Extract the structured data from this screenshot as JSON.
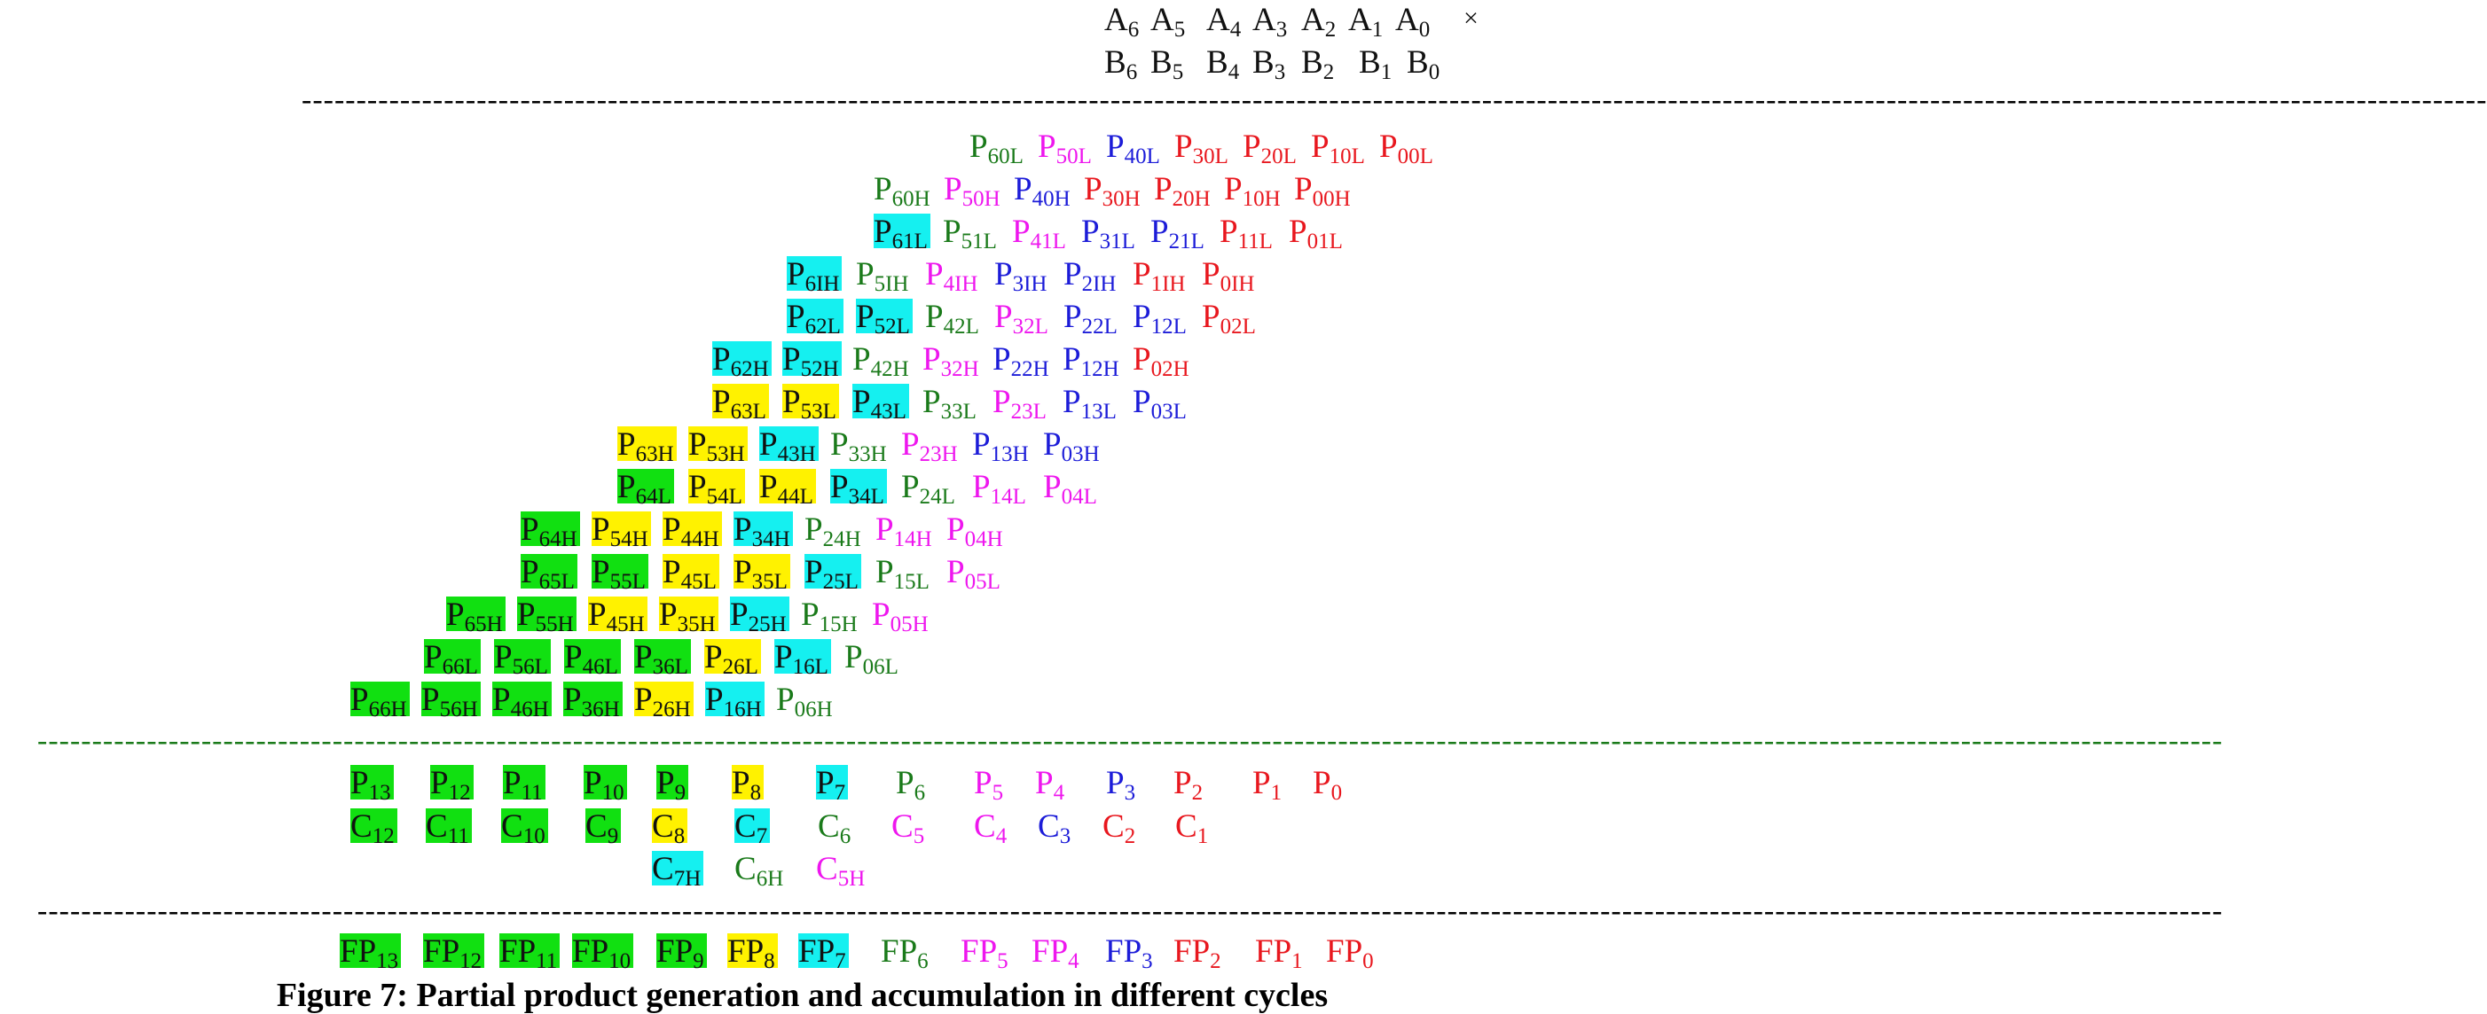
{
  "colors": {
    "red": "#e8171e",
    "magenta": "#ee16ee",
    "blue": "#1c1cd8",
    "green": "#1a7a1a",
    "highlight_green": "#11e011",
    "highlight_yellow": "#fff200",
    "highlight_cyan": "#15f0f0",
    "highlight_text": "#111111"
  },
  "operands": {
    "a_terms": [
      {
        "base": "A",
        "sub": "6"
      },
      {
        "base": "A",
        "sub": "5"
      },
      {
        "base": "A",
        "sub": "4"
      },
      {
        "base": "A",
        "sub": "3"
      },
      {
        "base": "A",
        "sub": "2"
      },
      {
        "base": "A",
        "sub": "1"
      },
      {
        "base": "A",
        "sub": "0"
      }
    ],
    "times_symbol": "×",
    "b_terms": [
      {
        "base": "B",
        "sub": "6"
      },
      {
        "base": "B",
        "sub": "5"
      },
      {
        "base": "B",
        "sub": "4"
      },
      {
        "base": "B",
        "sub": "3"
      },
      {
        "base": "B",
        "sub": "2"
      },
      {
        "base": "B",
        "sub": "1"
      },
      {
        "base": "B",
        "sub": "0"
      }
    ]
  },
  "partial_products": {
    "rows": [
      [
        {
          "base": "P",
          "sub": "60L",
          "color": "green"
        },
        {
          "base": "P",
          "sub": "50L",
          "color": "magenta"
        },
        {
          "base": "P",
          "sub": "40L",
          "color": "blue"
        },
        {
          "base": "P",
          "sub": "30L",
          "color": "red"
        },
        {
          "base": "P",
          "sub": "20L",
          "color": "red"
        },
        {
          "base": "P",
          "sub": "10L",
          "color": "red"
        },
        {
          "base": "P",
          "sub": "00L",
          "color": "red"
        }
      ],
      [
        {
          "base": "P",
          "sub": "60H",
          "color": "green"
        },
        {
          "base": "P",
          "sub": "50H",
          "color": "magenta"
        },
        {
          "base": "P",
          "sub": "40H",
          "color": "blue"
        },
        {
          "base": "P",
          "sub": "30H",
          "color": "red"
        },
        {
          "base": "P",
          "sub": "20H",
          "color": "red"
        },
        {
          "base": "P",
          "sub": "10H",
          "color": "red"
        },
        {
          "base": "P",
          "sub": "00H",
          "color": "red"
        }
      ],
      [
        {
          "base": "P",
          "sub": "61L",
          "color": "cyan-hl"
        },
        {
          "base": "P",
          "sub": "51L",
          "color": "green"
        },
        {
          "base": "P",
          "sub": "41L",
          "color": "magenta"
        },
        {
          "base": "P",
          "sub": "31L",
          "color": "blue"
        },
        {
          "base": "P",
          "sub": "21L",
          "color": "blue"
        },
        {
          "base": "P",
          "sub": "11L",
          "color": "red"
        },
        {
          "base": "P",
          "sub": "01L",
          "color": "red"
        }
      ],
      [
        {
          "base": "P",
          "sub": "6IH",
          "color": "cyan-hl"
        },
        {
          "base": "P",
          "sub": "5IH",
          "color": "green"
        },
        {
          "base": "P",
          "sub": "4IH",
          "color": "magenta"
        },
        {
          "base": "P",
          "sub": "3IH",
          "color": "blue"
        },
        {
          "base": "P",
          "sub": "2IH",
          "color": "blue"
        },
        {
          "base": "P",
          "sub": "1IH",
          "color": "red"
        },
        {
          "base": "P",
          "sub": "0IH",
          "color": "red"
        }
      ],
      [
        {
          "base": "P",
          "sub": "62L",
          "color": "cyan-hl"
        },
        {
          "base": "P",
          "sub": "52L",
          "color": "cyan-hl"
        },
        {
          "base": "P",
          "sub": "42L",
          "color": "green"
        },
        {
          "base": "P",
          "sub": "32L",
          "color": "magenta"
        },
        {
          "base": "P",
          "sub": "22L",
          "color": "blue"
        },
        {
          "base": "P",
          "sub": "12L",
          "color": "blue"
        },
        {
          "base": "P",
          "sub": "02L",
          "color": "red"
        }
      ],
      [
        {
          "base": "P",
          "sub": "62H",
          "color": "cyan-hl"
        },
        {
          "base": "P",
          "sub": "52H",
          "color": "cyan-hl"
        },
        {
          "base": "P",
          "sub": "42H",
          "color": "green"
        },
        {
          "base": "P",
          "sub": "32H",
          "color": "magenta"
        },
        {
          "base": "P",
          "sub": "22H",
          "color": "blue"
        },
        {
          "base": "P",
          "sub": "12H",
          "color": "blue"
        },
        {
          "base": "P",
          "sub": "02H",
          "color": "red"
        }
      ],
      [
        {
          "base": "P",
          "sub": "63L",
          "color": "yellow-hl"
        },
        {
          "base": "P",
          "sub": "53L",
          "color": "yellow-hl"
        },
        {
          "base": "P",
          "sub": "43L",
          "color": "cyan-hl"
        },
        {
          "base": "P",
          "sub": "33L",
          "color": "green"
        },
        {
          "base": "P",
          "sub": "23L",
          "color": "magenta"
        },
        {
          "base": "P",
          "sub": "13L",
          "color": "blue"
        },
        {
          "base": "P",
          "sub": "03L",
          "color": "blue"
        }
      ],
      [
        {
          "base": "P",
          "sub": "63H",
          "color": "yellow-hl"
        },
        {
          "base": "P",
          "sub": "53H",
          "color": "yellow-hl"
        },
        {
          "base": "P",
          "sub": "43H",
          "color": "cyan-hl"
        },
        {
          "base": "P",
          "sub": "33H",
          "color": "green"
        },
        {
          "base": "P",
          "sub": "23H",
          "color": "magenta"
        },
        {
          "base": "P",
          "sub": "13H",
          "color": "blue"
        },
        {
          "base": "P",
          "sub": "03H",
          "color": "blue"
        }
      ],
      [
        {
          "base": "P",
          "sub": "64L",
          "color": "green-hl"
        },
        {
          "base": "P",
          "sub": "54L",
          "color": "yellow-hl"
        },
        {
          "base": "P",
          "sub": "44L",
          "color": "yellow-hl"
        },
        {
          "base": "P",
          "sub": "34L",
          "color": "cyan-hl"
        },
        {
          "base": "P",
          "sub": "24L",
          "color": "green"
        },
        {
          "base": "P",
          "sub": "14L",
          "color": "magenta"
        },
        {
          "base": "P",
          "sub": "04L",
          "color": "magenta"
        }
      ],
      [
        {
          "base": "P",
          "sub": "64H",
          "color": "green-hl"
        },
        {
          "base": "P",
          "sub": "54H",
          "color": "yellow-hl"
        },
        {
          "base": "P",
          "sub": "44H",
          "color": "yellow-hl"
        },
        {
          "base": "P",
          "sub": "34H",
          "color": "cyan-hl"
        },
        {
          "base": "P",
          "sub": "24H",
          "color": "green"
        },
        {
          "base": "P",
          "sub": "14H",
          "color": "magenta"
        },
        {
          "base": "P",
          "sub": "04H",
          "color": "magenta"
        }
      ],
      [
        {
          "base": "P",
          "sub": "65L",
          "color": "green-hl"
        },
        {
          "base": "P",
          "sub": "55L",
          "color": "green-hl"
        },
        {
          "base": "P",
          "sub": "45L",
          "color": "yellow-hl"
        },
        {
          "base": "P",
          "sub": "35L",
          "color": "yellow-hl"
        },
        {
          "base": "P",
          "sub": "25L",
          "color": "cyan-hl"
        },
        {
          "base": "P",
          "sub": "15L",
          "color": "green"
        },
        {
          "base": "P",
          "sub": "05L",
          "color": "magenta"
        }
      ],
      [
        {
          "base": "P",
          "sub": "65H",
          "color": "green-hl"
        },
        {
          "base": "P",
          "sub": "55H",
          "color": "green-hl"
        },
        {
          "base": "P",
          "sub": "45H",
          "color": "yellow-hl"
        },
        {
          "base": "P",
          "sub": "35H",
          "color": "yellow-hl"
        },
        {
          "base": "P",
          "sub": "25H",
          "color": "cyan-hl"
        },
        {
          "base": "P",
          "sub": "15H",
          "color": "green"
        },
        {
          "base": "P",
          "sub": "05H",
          "color": "magenta"
        }
      ],
      [
        {
          "base": "P",
          "sub": "66L",
          "color": "green-hl"
        },
        {
          "base": "P",
          "sub": "56L",
          "color": "green-hl"
        },
        {
          "base": "P",
          "sub": "46L",
          "color": "green-hl"
        },
        {
          "base": "P",
          "sub": "36L",
          "color": "green-hl"
        },
        {
          "base": "P",
          "sub": "26L",
          "color": "yellow-hl"
        },
        {
          "base": "P",
          "sub": "16L",
          "color": "cyan-hl"
        },
        {
          "base": "P",
          "sub": "06L",
          "color": "green"
        }
      ],
      [
        {
          "base": "P",
          "sub": "66H",
          "color": "green-hl"
        },
        {
          "base": "P",
          "sub": "56H",
          "color": "green-hl"
        },
        {
          "base": "P",
          "sub": "46H",
          "color": "green-hl"
        },
        {
          "base": "P",
          "sub": "36H",
          "color": "green-hl"
        },
        {
          "base": "P",
          "sub": "26H",
          "color": "yellow-hl"
        },
        {
          "base": "P",
          "sub": "16H",
          "color": "cyan-hl"
        },
        {
          "base": "P",
          "sub": "06H",
          "color": "green"
        }
      ]
    ]
  },
  "accumulation": {
    "p_row": [
      {
        "base": "P",
        "sub": "13",
        "color": "green-hl"
      },
      {
        "base": "P",
        "sub": "12",
        "color": "green-hl"
      },
      {
        "base": "P",
        "sub": "11",
        "color": "green-hl"
      },
      {
        "base": "P",
        "sub": "10",
        "color": "green-hl"
      },
      {
        "base": "P",
        "sub": "9",
        "color": "green-hl"
      },
      {
        "base": "P",
        "sub": "8",
        "color": "yellow-hl"
      },
      {
        "base": "P",
        "sub": "7",
        "color": "cyan-hl"
      },
      {
        "base": "P",
        "sub": "6",
        "color": "green"
      },
      {
        "base": "P",
        "sub": "5",
        "color": "magenta"
      },
      {
        "base": "P",
        "sub": "4",
        "color": "magenta"
      },
      {
        "base": "P",
        "sub": "3",
        "color": "blue"
      },
      {
        "base": "P",
        "sub": "2",
        "color": "red"
      },
      {
        "base": "P",
        "sub": "1",
        "color": "red"
      },
      {
        "base": "P",
        "sub": "0",
        "color": "red"
      }
    ],
    "c_row": [
      {
        "base": "C",
        "sub": "12",
        "color": "green-hl"
      },
      {
        "base": "C",
        "sub": "11",
        "color": "green-hl"
      },
      {
        "base": "C",
        "sub": "10",
        "color": "green-hl"
      },
      {
        "base": "C",
        "sub": "9",
        "color": "green-hl"
      },
      {
        "base": "C",
        "sub": "8",
        "color": "yellow-hl"
      },
      {
        "base": "C",
        "sub": "7",
        "color": "cyan-hl"
      },
      {
        "base": "C",
        "sub": "6",
        "color": "green"
      },
      {
        "base": "C",
        "sub": "5",
        "color": "magenta"
      },
      {
        "base": "C",
        "sub": "4",
        "color": "magenta"
      },
      {
        "base": "C",
        "sub": "3",
        "color": "blue"
      },
      {
        "base": "C",
        "sub": "2",
        "color": "red"
      },
      {
        "base": "C",
        "sub": "1",
        "color": "red"
      }
    ],
    "c_high_row": [
      {
        "base": "C",
        "sub": "7H",
        "color": "cyan-hl"
      },
      {
        "base": "C",
        "sub": "6H",
        "color": "green"
      },
      {
        "base": "C",
        "sub": "5H",
        "color": "magenta"
      }
    ]
  },
  "final_products": [
    {
      "base": "FP",
      "sub": "13",
      "color": "green-hl"
    },
    {
      "base": "FP",
      "sub": "12",
      "color": "green-hl"
    },
    {
      "base": "FP",
      "sub": "11",
      "color": "green-hl"
    },
    {
      "base": "FP",
      "sub": "10",
      "color": "green-hl"
    },
    {
      "base": "FP",
      "sub": "9",
      "color": "green-hl"
    },
    {
      "base": "FP",
      "sub": "8",
      "color": "yellow-hl"
    },
    {
      "base": "FP",
      "sub": "7",
      "color": "cyan-hl"
    },
    {
      "base": "FP",
      "sub": "6",
      "color": "green"
    },
    {
      "base": "FP",
      "sub": "5",
      "color": "magenta"
    },
    {
      "base": "FP",
      "sub": "4",
      "color": "magenta"
    },
    {
      "base": "FP",
      "sub": "3",
      "color": "blue"
    },
    {
      "base": "FP",
      "sub": "2",
      "color": "red"
    },
    {
      "base": "FP",
      "sub": "1",
      "color": "red"
    },
    {
      "base": "FP",
      "sub": "0",
      "color": "red"
    }
  ],
  "separator_text": "-",
  "caption": "Figure 7: Partial product generation and accumulation in different cycles"
}
